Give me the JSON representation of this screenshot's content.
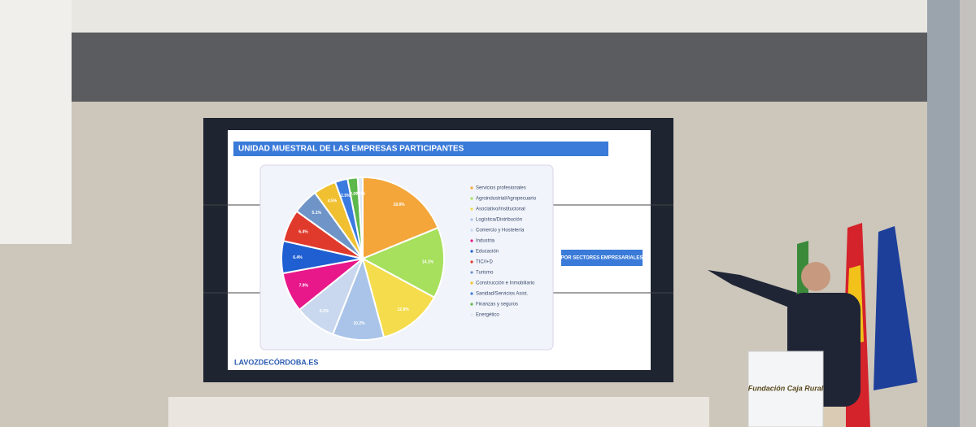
{
  "chart_data": {
    "type": "pie",
    "title": "UNIDAD MUESTRAL DE LAS EMPRESAS PARTICIPANTES",
    "subtitle": "POR SECTORES EMPRESARIALES",
    "categories": [
      "Servicios profesionales",
      "Agroindustrial/Agropecuario",
      "Asociativo/Institucional",
      "Logística/Distribución",
      "Comercio y Hostelería",
      "Industria",
      "Educación",
      "TIC/I+D",
      "Turismo",
      "Construcción e Inmobiliario",
      "Sanidad/Servicios Asist.",
      "Finanzas y seguros",
      "Energético"
    ],
    "values": [
      18.8,
      14.1,
      12.9,
      10.2,
      8.2,
      7.9,
      6.4,
      6.4,
      5.1,
      4.5,
      2.5,
      2.0,
      1.0
    ],
    "value_labels": [
      "18.8%",
      "14.1%",
      "12.9%",
      "10.2%",
      "8.2%",
      "7.9%",
      "6.4%",
      "6.4%",
      "5.1%",
      "4.5%",
      "2.5%",
      "2.0%",
      "1.0%"
    ],
    "colors": [
      "#f4a63a",
      "#a6e05c",
      "#f5dc4c",
      "#a9c4e8",
      "#c9d8ee",
      "#e8178a",
      "#1f5fd1",
      "#e03a2c",
      "#6f95c8",
      "#f0c030",
      "#3b7be0",
      "#5cb84a",
      "#dde8f5"
    ]
  },
  "scene": {
    "watermark": "LAVOZDECÓRDOBA.ES",
    "lectern": "Fundación Caja Rural"
  }
}
